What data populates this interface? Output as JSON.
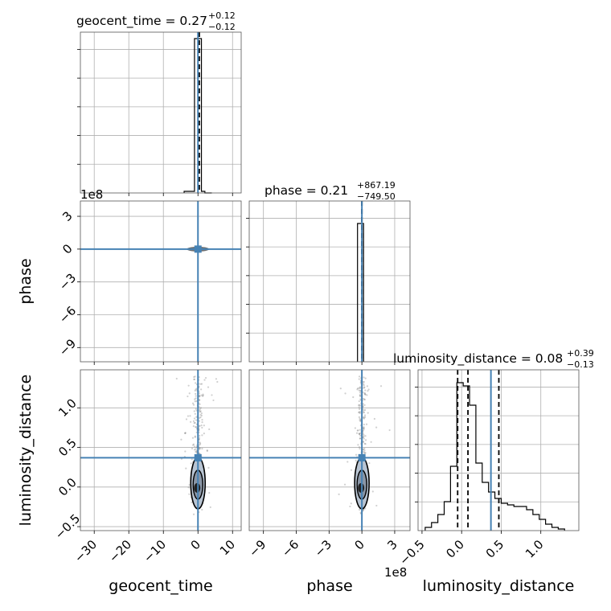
{
  "chart_data": {
    "type": "corner",
    "parameters": [
      "geocent_time",
      "phase",
      "luminosity_distance"
    ],
    "truth_color": "#4682b4",
    "titles": {
      "geocent_time": {
        "label": "geocent_time = 0.27",
        "plus": "+0.12",
        "minus": "−0.12"
      },
      "phase": {
        "label": "phase = 0.21",
        "plus": "+867.19",
        "minus": "−749.50"
      },
      "luminosity_distance": {
        "label": "luminosity_distance = 0.08",
        "plus": "+0.39",
        "minus": "−0.13"
      }
    },
    "axes": {
      "geocent_time": {
        "range": [
          -34,
          12.5
        ],
        "ticks": [
          -30,
          -20,
          -10,
          0,
          10
        ],
        "tick_labels": [
          "−30",
          "−20",
          "−10",
          "0",
          "10"
        ]
      },
      "phase": {
        "range": [
          -10.3,
          4.4
        ],
        "ticks": [
          -9,
          -6,
          -3,
          0,
          3
        ],
        "tick_labels": [
          "−9",
          "−6",
          "−3",
          "0",
          "3"
        ],
        "offset_text": "1e8"
      },
      "luminosity_distance": {
        "range": [
          -0.55,
          1.48
        ],
        "ticks": [
          -0.5,
          0.0,
          0.5,
          1.0
        ],
        "tick_labels": [
          "−0.5",
          "0.0",
          "0.5",
          "1.0"
        ]
      }
    },
    "truths": {
      "geocent_time": 0.0,
      "phase": 0.0,
      "luminosity_distance": 0.37
    },
    "quantile_lines": {
      "geocent_time": [
        0.15,
        0.27,
        0.39
      ],
      "phase": [
        0.0,
        0.0,
        0.0
      ],
      "luminosity_distance": [
        -0.05,
        0.08,
        0.47
      ]
    },
    "histograms": {
      "geocent_time": {
        "edges": [
          -4,
          -2,
          -1,
          0,
          1,
          2,
          4
        ],
        "counts": [
          0.01,
          0.01,
          0.96,
          0.96,
          0.01,
          0.0
        ]
      },
      "phase": {
        "edges": [
          -0.4,
          0.0,
          0.15
        ],
        "counts": [
          0.86,
          0.86
        ]
      },
      "luminosity_distance": {
        "edges": [
          -0.46,
          -0.38,
          -0.3,
          -0.22,
          -0.14,
          -0.06,
          0.02,
          0.1,
          0.18,
          0.26,
          0.34,
          0.42,
          0.5,
          0.58,
          0.66,
          0.74,
          0.82,
          0.9,
          0.98,
          1.06,
          1.14,
          1.22,
          1.3
        ],
        "counts": [
          0.02,
          0.05,
          0.1,
          0.18,
          0.4,
          0.92,
          0.9,
          0.78,
          0.42,
          0.3,
          0.24,
          0.2,
          0.17,
          0.16,
          0.15,
          0.15,
          0.13,
          0.1,
          0.07,
          0.04,
          0.02,
          0.01
        ]
      }
    }
  }
}
